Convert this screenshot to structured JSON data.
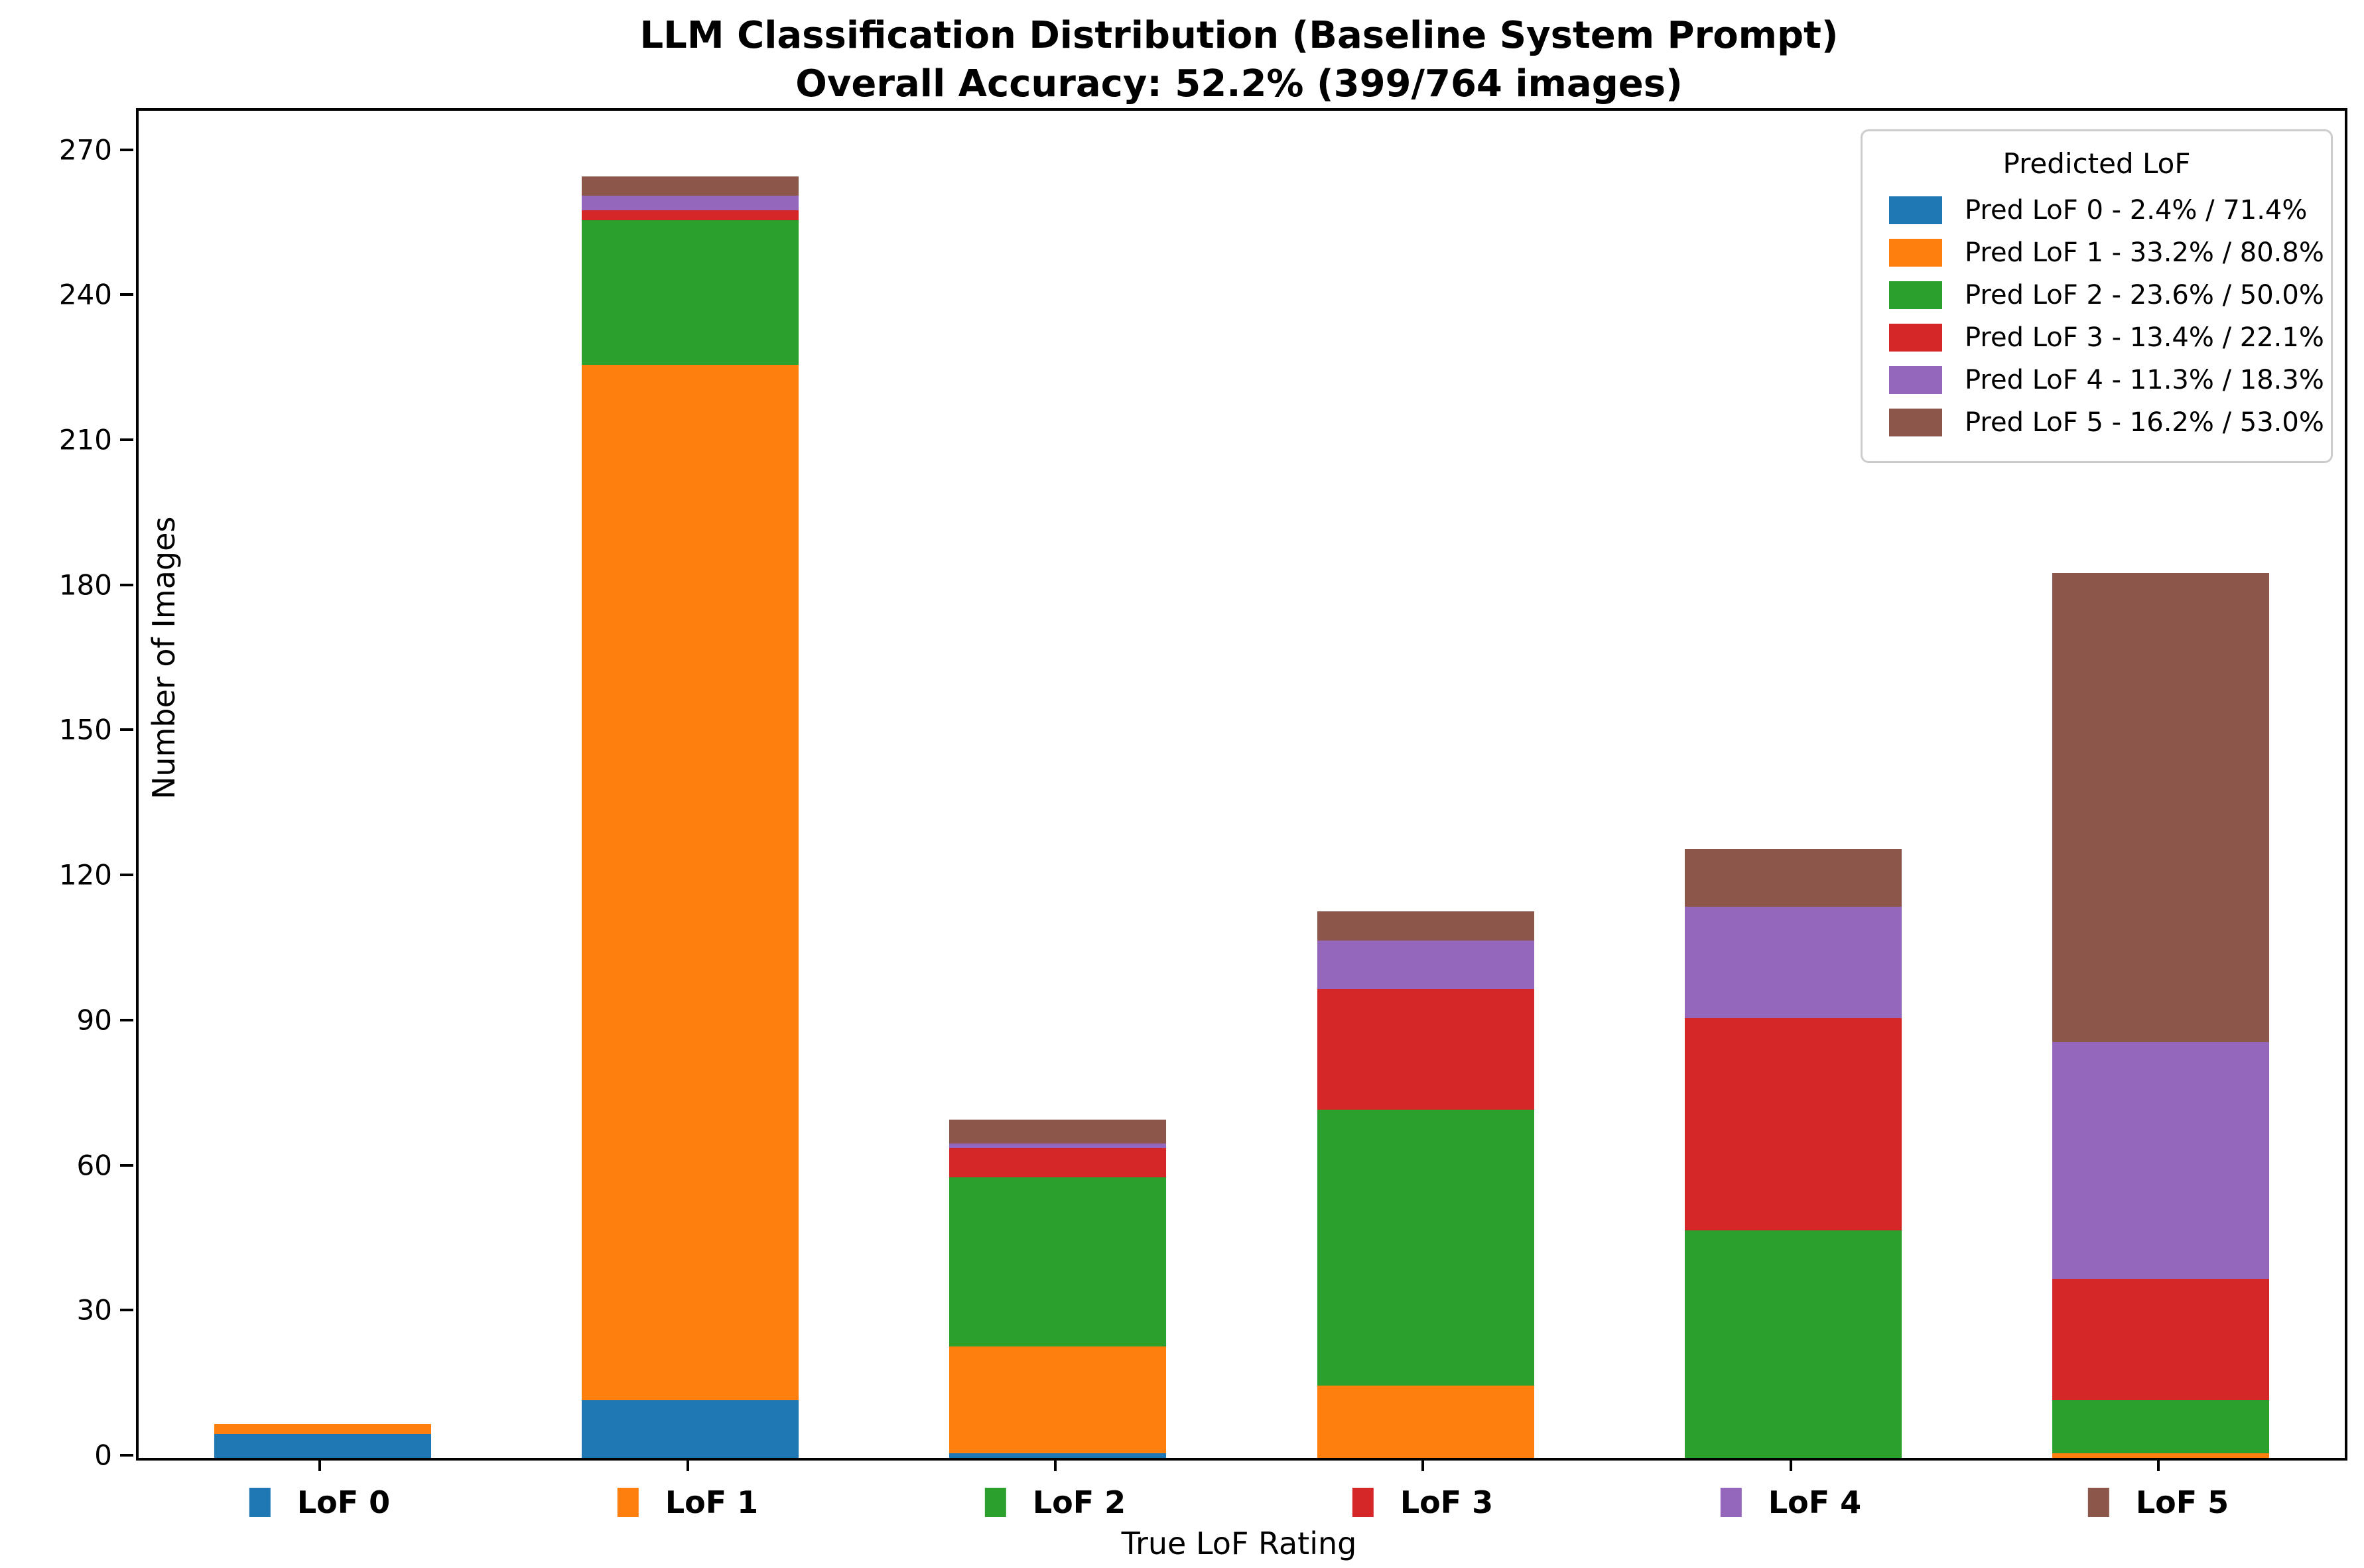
{
  "title": {
    "line1": "LLM Classification Distribution (Baseline System Prompt)",
    "line2": "Overall Accuracy: 52.2% (399/764 images)"
  },
  "axes": {
    "xlabel": "True LoF Rating",
    "ylabel": "Number of Images"
  },
  "legend": {
    "title": "Predicted LoF"
  },
  "chart_data": {
    "type": "bar",
    "stacked": true,
    "title": "LLM Classification Distribution (Baseline System Prompt)",
    "subtitle": "Overall Accuracy: 52.2% (399/764 images)",
    "xlabel": "True LoF Rating",
    "ylabel": "Number of Images",
    "categories": [
      "LoF 0",
      "LoF 1",
      "LoF 2",
      "LoF 3",
      "LoF 4",
      "LoF 5"
    ],
    "category_marker_colors": [
      "#1f77b4",
      "#ff7f0e",
      "#2ca02c",
      "#d62728",
      "#9467bd",
      "#8c564b"
    ],
    "category_totals": [
      7,
      265,
      70,
      113,
      126,
      183
    ],
    "series": [
      {
        "name": "Pred LoF 0 - 2.4% / 71.4%",
        "color": "#1f77b4",
        "values": [
          5,
          12,
          1,
          0,
          0,
          0
        ]
      },
      {
        "name": "Pred LoF 1 - 33.2% / 80.8%",
        "color": "#ff7f0e",
        "values": [
          2,
          214,
          22,
          15,
          0,
          1
        ]
      },
      {
        "name": "Pred LoF 2 - 23.6% / 50.0%",
        "color": "#2ca02c",
        "values": [
          0,
          30,
          35,
          57,
          47,
          11
        ]
      },
      {
        "name": "Pred LoF 3 - 13.4% / 22.1%",
        "color": "#d62728",
        "values": [
          0,
          2,
          6,
          25,
          44,
          25
        ]
      },
      {
        "name": "Pred LoF 4 - 11.3% / 18.3%",
        "color": "#9467bd",
        "values": [
          0,
          3,
          1,
          10,
          23,
          49
        ]
      },
      {
        "name": "Pred LoF 5 - 16.2% / 53.0%",
        "color": "#8c564b",
        "values": [
          0,
          4,
          5,
          6,
          12,
          97
        ]
      }
    ],
    "yticks": [
      0,
      30,
      60,
      90,
      120,
      150,
      180,
      210,
      240,
      270
    ],
    "ylim": [
      0,
      278.6
    ],
    "legend_title": "Predicted LoF",
    "legend_position": "upper right",
    "grid": false
  }
}
